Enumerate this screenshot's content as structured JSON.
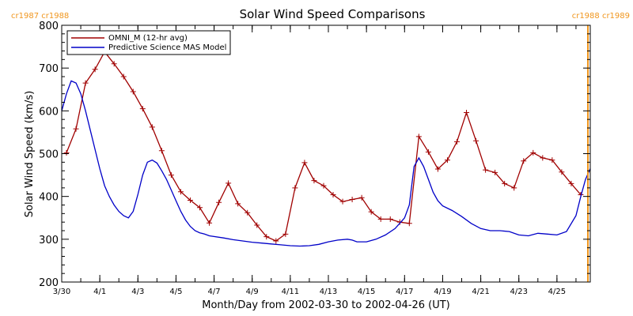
{
  "chart_data": {
    "type": "line",
    "title": "Solar Wind Speed Comparisons",
    "xlabel": "Month/Day from 2002-03-30 to 2002-04-26 (UT)",
    "ylabel": "Solar Wind Speed (km/s)",
    "xlim": [
      "2002-03-30",
      "2002-04-26T18:00"
    ],
    "ylim": [
      200,
      800
    ],
    "x_ticks": [
      {
        "date": "2002-03-30",
        "label": "3/30"
      },
      {
        "date": "2002-04-01",
        "label": "4/1"
      },
      {
        "date": "2002-04-03",
        "label": "4/3"
      },
      {
        "date": "2002-04-05",
        "label": "4/5"
      },
      {
        "date": "2002-04-07",
        "label": "4/7"
      },
      {
        "date": "2002-04-09",
        "label": "4/9"
      },
      {
        "date": "2002-04-11",
        "label": "4/11"
      },
      {
        "date": "2002-04-13",
        "label": "4/13"
      },
      {
        "date": "2002-04-15",
        "label": "4/15"
      },
      {
        "date": "2002-04-17",
        "label": "4/17"
      },
      {
        "date": "2002-04-19",
        "label": "4/19"
      },
      {
        "date": "2002-04-21",
        "label": "4/21"
      },
      {
        "date": "2002-04-23",
        "label": "4/23"
      },
      {
        "date": "2002-04-25",
        "label": "4/25"
      }
    ],
    "y_ticks": [
      200,
      300,
      400,
      500,
      600,
      700,
      800
    ],
    "grid": false,
    "legend_position": "top-left",
    "carrington_markers": [
      {
        "label": "cr1987 cr1988",
        "side": "left"
      },
      {
        "label": "cr1988 cr1989",
        "side": "right",
        "date": "2002-04-26T15:00",
        "color": "#f0961e"
      }
    ],
    "series": [
      {
        "name": "OMNI_M (12-hr avg)",
        "color": "#a00000",
        "marker": "plus",
        "points": [
          [
            "2002-03-30T06:00",
            502
          ],
          [
            "2002-03-30T18:00",
            558
          ],
          [
            "2002-03-31T06:00",
            665
          ],
          [
            "2002-03-31T18:00",
            697
          ],
          [
            "2002-04-01T06:00",
            738
          ],
          [
            "2002-04-01T18:00",
            710
          ],
          [
            "2002-04-02T06:00",
            680
          ],
          [
            "2002-04-02T18:00",
            645
          ],
          [
            "2002-04-03T06:00",
            605
          ],
          [
            "2002-04-03T18:00",
            562
          ],
          [
            "2002-04-04T06:00",
            507
          ],
          [
            "2002-04-04T18:00",
            450
          ],
          [
            "2002-04-05T06:00",
            411
          ],
          [
            "2002-04-05T18:00",
            391
          ],
          [
            "2002-04-06T06:00",
            374
          ],
          [
            "2002-04-06T18:00",
            338
          ],
          [
            "2002-04-07T06:00",
            386
          ],
          [
            "2002-04-07T18:00",
            431
          ],
          [
            "2002-04-08T06:00",
            383
          ],
          [
            "2002-04-08T18:00",
            362
          ],
          [
            "2002-04-09T06:00",
            333
          ],
          [
            "2002-04-09T18:00",
            306
          ],
          [
            "2002-04-10T06:00",
            296
          ],
          [
            "2002-04-10T18:00",
            312
          ],
          [
            "2002-04-11T06:00",
            420
          ],
          [
            "2002-04-11T18:00",
            479
          ],
          [
            "2002-04-12T06:00",
            437
          ],
          [
            "2002-04-12T18:00",
            425
          ],
          [
            "2002-04-13T06:00",
            404
          ],
          [
            "2002-04-13T18:00",
            388
          ],
          [
            "2002-04-14T06:00",
            393
          ],
          [
            "2002-04-14T18:00",
            397
          ],
          [
            "2002-04-15T06:00",
            364
          ],
          [
            "2002-04-15T18:00",
            347
          ],
          [
            "2002-04-16T06:00",
            347
          ],
          [
            "2002-04-16T18:00",
            340
          ],
          [
            "2002-04-17T06:00",
            337
          ],
          [
            "2002-04-17T18:00",
            540
          ],
          [
            "2002-04-18T06:00",
            504
          ],
          [
            "2002-04-18T18:00",
            464
          ],
          [
            "2002-04-19T06:00",
            485
          ],
          [
            "2002-04-19T18:00",
            528
          ],
          [
            "2002-04-20T06:00",
            596
          ],
          [
            "2002-04-20T18:00",
            530
          ],
          [
            "2002-04-21T06:00",
            462
          ],
          [
            "2002-04-21T18:00",
            456
          ],
          [
            "2002-04-22T06:00",
            430
          ],
          [
            "2002-04-22T18:00",
            420
          ],
          [
            "2002-04-23T06:00",
            483
          ],
          [
            "2002-04-23T18:00",
            502
          ],
          [
            "2002-04-24T06:00",
            490
          ],
          [
            "2002-04-24T18:00",
            485
          ],
          [
            "2002-04-25T06:00",
            457
          ],
          [
            "2002-04-25T18:00",
            430
          ],
          [
            "2002-04-26T06:00",
            404
          ]
        ]
      },
      {
        "name": "Predictive Science MAS Model",
        "color": "#0000c8",
        "marker": "none",
        "points": [
          [
            "2002-03-30T00:00",
            600
          ],
          [
            "2002-03-30T06:00",
            640
          ],
          [
            "2002-03-30T12:00",
            670
          ],
          [
            "2002-03-30T18:00",
            665
          ],
          [
            "2002-03-31T00:00",
            640
          ],
          [
            "2002-03-31T06:00",
            600
          ],
          [
            "2002-03-31T12:00",
            555
          ],
          [
            "2002-03-31T18:00",
            510
          ],
          [
            "2002-04-01T00:00",
            465
          ],
          [
            "2002-04-01T06:00",
            425
          ],
          [
            "2002-04-01T12:00",
            400
          ],
          [
            "2002-04-01T18:00",
            380
          ],
          [
            "2002-04-02T00:00",
            365
          ],
          [
            "2002-04-02T06:00",
            355
          ],
          [
            "2002-04-02T12:00",
            350
          ],
          [
            "2002-04-02T18:00",
            365
          ],
          [
            "2002-04-03T00:00",
            405
          ],
          [
            "2002-04-03T06:00",
            450
          ],
          [
            "2002-04-03T12:00",
            480
          ],
          [
            "2002-04-03T18:00",
            485
          ],
          [
            "2002-04-04T00:00",
            478
          ],
          [
            "2002-04-04T06:00",
            460
          ],
          [
            "2002-04-04T12:00",
            440
          ],
          [
            "2002-04-04T18:00",
            415
          ],
          [
            "2002-04-05T00:00",
            390
          ],
          [
            "2002-04-05T06:00",
            365
          ],
          [
            "2002-04-05T12:00",
            345
          ],
          [
            "2002-04-05T18:00",
            330
          ],
          [
            "2002-04-06T00:00",
            320
          ],
          [
            "2002-04-06T06:00",
            315
          ],
          [
            "2002-04-06T12:00",
            312
          ],
          [
            "2002-04-06T18:00",
            308
          ],
          [
            "2002-04-07T12:00",
            303
          ],
          [
            "2002-04-08T00:00",
            299
          ],
          [
            "2002-04-08T12:00",
            296
          ],
          [
            "2002-04-09T00:00",
            293
          ],
          [
            "2002-04-09T12:00",
            291
          ],
          [
            "2002-04-10T00:00",
            289
          ],
          [
            "2002-04-10T12:00",
            287
          ],
          [
            "2002-04-11T00:00",
            285
          ],
          [
            "2002-04-11T12:00",
            284
          ],
          [
            "2002-04-12T00:00",
            285
          ],
          [
            "2002-04-12T12:00",
            288
          ],
          [
            "2002-04-13T00:00",
            294
          ],
          [
            "2002-04-13T12:00",
            298
          ],
          [
            "2002-04-14T00:00",
            300
          ],
          [
            "2002-04-14T06:00",
            298
          ],
          [
            "2002-04-14T12:00",
            294
          ],
          [
            "2002-04-15T00:00",
            294
          ],
          [
            "2002-04-15T12:00",
            300
          ],
          [
            "2002-04-16T00:00",
            310
          ],
          [
            "2002-04-16T12:00",
            325
          ],
          [
            "2002-04-17T00:00",
            350
          ],
          [
            "2002-04-17T06:00",
            380
          ],
          [
            "2002-04-17T12:00",
            470
          ],
          [
            "2002-04-17T18:00",
            490
          ],
          [
            "2002-04-18T00:00",
            470
          ],
          [
            "2002-04-18T06:00",
            440
          ],
          [
            "2002-04-18T12:00",
            410
          ],
          [
            "2002-04-18T18:00",
            390
          ],
          [
            "2002-04-19T00:00",
            378
          ],
          [
            "2002-04-19T12:00",
            367
          ],
          [
            "2002-04-20T00:00",
            353
          ],
          [
            "2002-04-20T12:00",
            337
          ],
          [
            "2002-04-21T00:00",
            325
          ],
          [
            "2002-04-21T12:00",
            320
          ],
          [
            "2002-04-22T00:00",
            320
          ],
          [
            "2002-04-22T12:00",
            318
          ],
          [
            "2002-04-23T00:00",
            310
          ],
          [
            "2002-04-23T12:00",
            308
          ],
          [
            "2002-04-24T00:00",
            314
          ],
          [
            "2002-04-24T12:00",
            312
          ],
          [
            "2002-04-25T00:00",
            310
          ],
          [
            "2002-04-25T12:00",
            318
          ],
          [
            "2002-04-26T00:00",
            355
          ],
          [
            "2002-04-26T06:00",
            400
          ],
          [
            "2002-04-26T12:00",
            440
          ],
          [
            "2002-04-26T18:00",
            465
          ]
        ]
      }
    ]
  }
}
